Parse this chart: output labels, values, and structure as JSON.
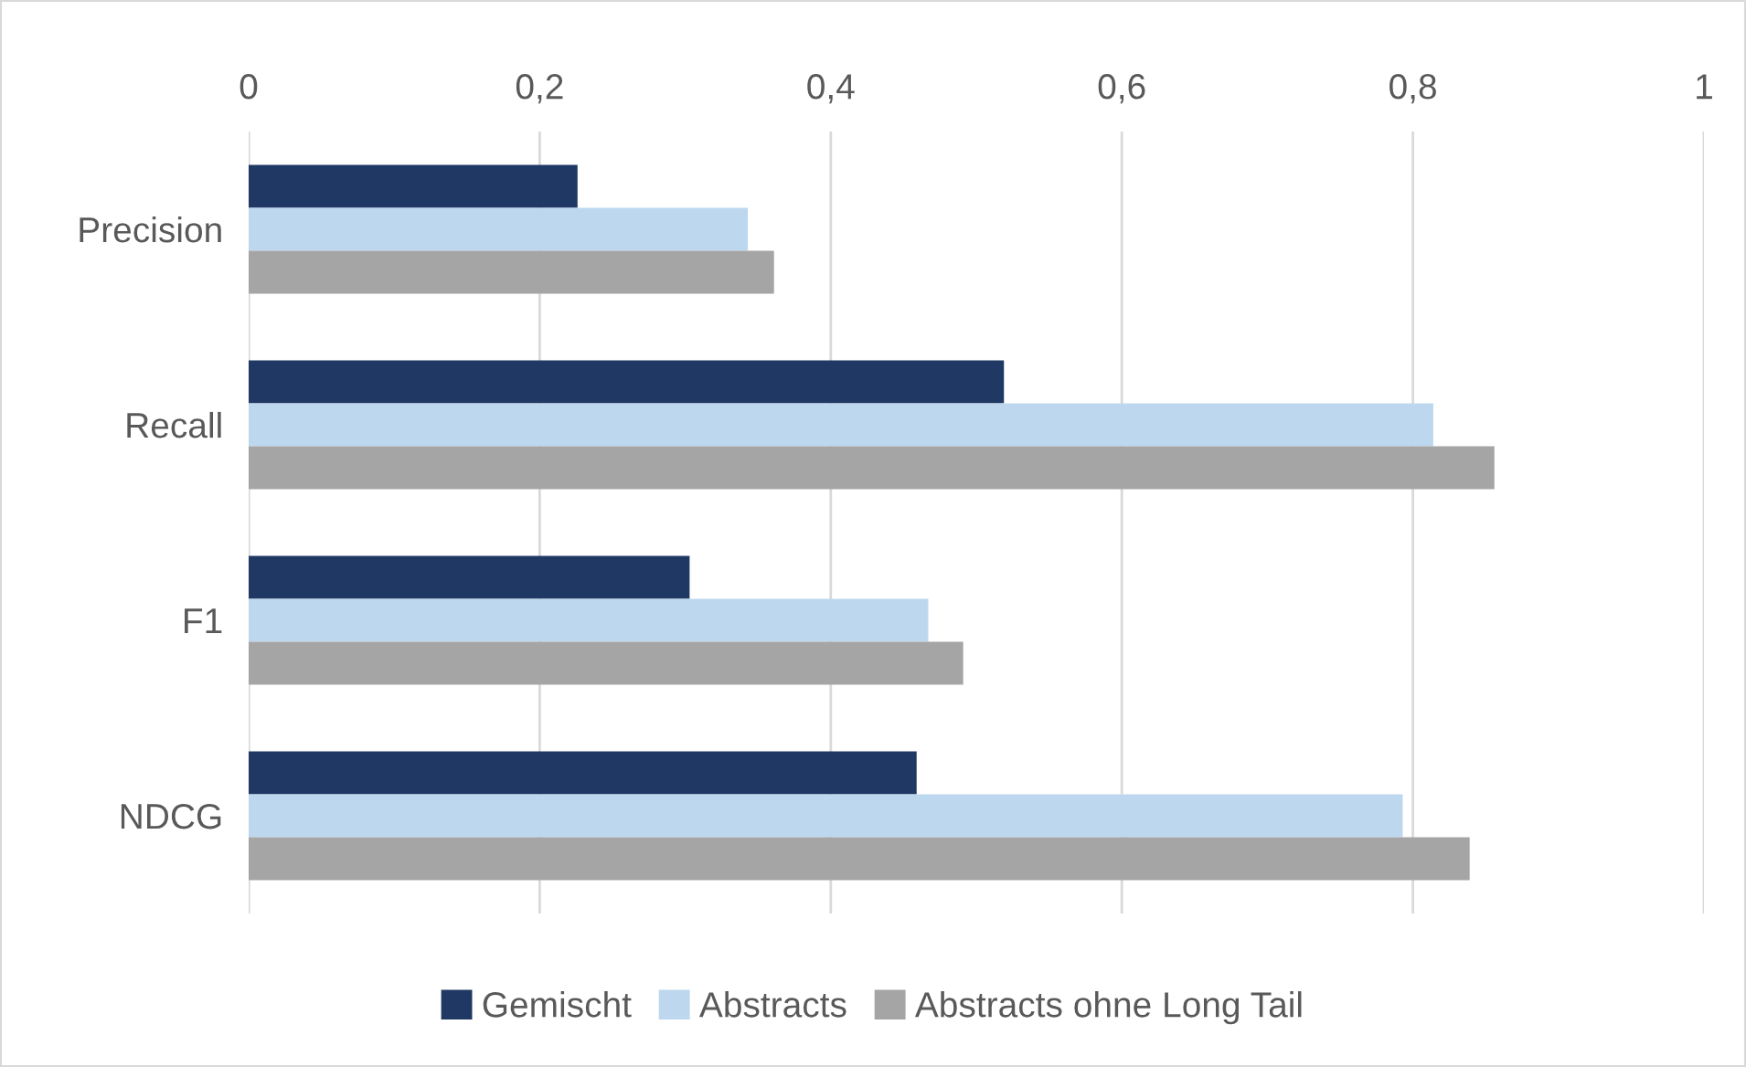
{
  "chart_data": {
    "type": "bar",
    "orientation": "horizontal",
    "categories": [
      "Precision",
      "Recall",
      "F1",
      "NDCG"
    ],
    "series": [
      {
        "name": "Gemischt",
        "color": "#203864",
        "values": [
          0.226,
          0.519,
          0.303,
          0.459
        ]
      },
      {
        "name": "Abstracts",
        "color": "#bdd7ee",
        "values": [
          0.343,
          0.814,
          0.467,
          0.793
        ]
      },
      {
        "name": "Abstracts ohne Long Tail",
        "color": "#a5a5a5",
        "values": [
          0.361,
          0.856,
          0.491,
          0.839
        ]
      }
    ],
    "xlim": [
      0,
      1
    ],
    "xticks": [
      0,
      {
        "value": 0.2,
        "label": "0,2"
      },
      {
        "value": 0.4,
        "label": "0,4"
      },
      {
        "value": 0.6,
        "label": "0,6"
      },
      {
        "value": 0.8,
        "label": "0,8"
      },
      1
    ],
    "grid": "x",
    "legend": "bottom"
  }
}
